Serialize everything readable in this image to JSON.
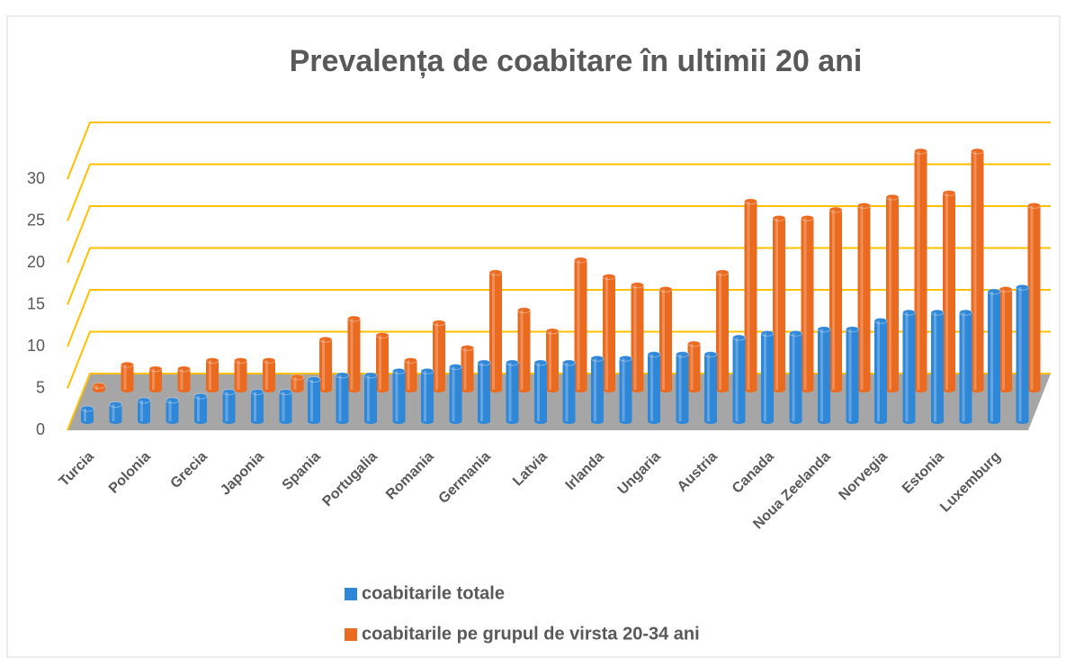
{
  "chart_data": {
    "type": "bar3d",
    "title": "Prevalența de coabitare în ultimii 20 ani",
    "categories": [
      "Turcia",
      null,
      "Polonia",
      null,
      "Grecia",
      null,
      "Japonia",
      null,
      "Spania",
      null,
      "Portugalia",
      null,
      "Romania",
      null,
      "Germania",
      null,
      "Latvia",
      null,
      "Irlanda",
      null,
      "Ungaria",
      null,
      "Austria",
      null,
      "Canada",
      null,
      "Noua Zeelanda",
      null,
      "Norvegia",
      null,
      "Estonia",
      null,
      "Luxemburg",
      null
    ],
    "series": [
      {
        "name": "coabitarile totale",
        "color": "#2f87d8",
        "values": [
          1.5,
          2,
          2.5,
          2.5,
          3,
          3.5,
          3.5,
          3.5,
          5,
          5.5,
          5.5,
          6,
          6,
          6.5,
          7,
          7,
          7,
          7,
          7.5,
          7.5,
          8,
          8,
          8,
          10,
          10.5,
          10.5,
          11,
          11,
          12,
          13,
          13,
          13,
          15.5,
          16
        ]
      },
      {
        "name": "coabitarile pe grupul de virsta 20-34 ani",
        "color": "#ea6a1f",
        "values": [
          0.5,
          3,
          2.5,
          2.5,
          3.5,
          3.5,
          3.5,
          1.5,
          6,
          8.5,
          6.5,
          3.5,
          8,
          5,
          14,
          9.5,
          7,
          15.5,
          13.5,
          12.5,
          12,
          5.5,
          14,
          22.5,
          20.5,
          20.5,
          21.5,
          22,
          23,
          28.5,
          23.5,
          28.5,
          12,
          22
        ]
      }
    ],
    "ylim": [
      0,
      30
    ],
    "yticks": [
      0,
      5,
      10,
      15,
      20,
      25,
      30
    ],
    "grid": true,
    "legend": "bottom"
  }
}
